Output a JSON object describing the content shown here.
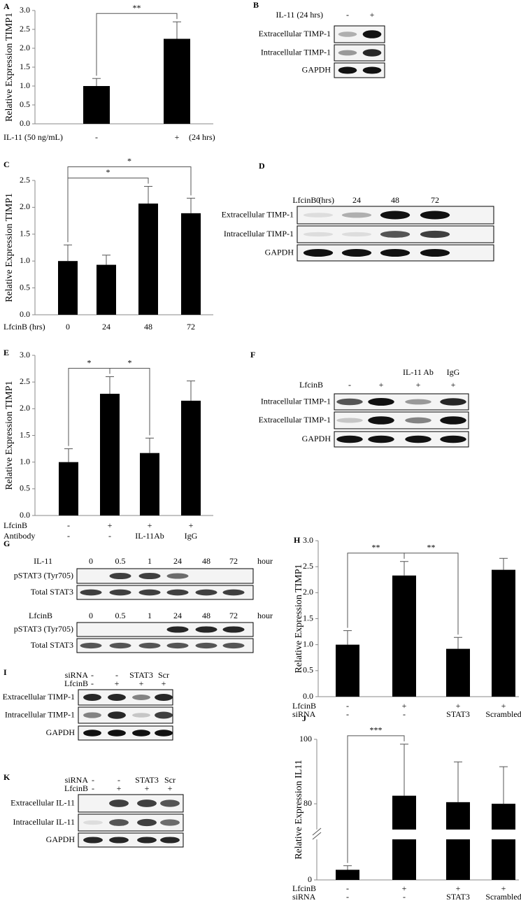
{
  "chart_data": [
    {
      "type": "bar",
      "panel": "A",
      "ylabel": "Relative Expression TIMP1",
      "category_rows": [
        {
          "name": "IL-11 (50 ng/mL)",
          "labels": [
            "-",
            "+"
          ]
        }
      ],
      "row_note": "(24 hrs)",
      "values": [
        1.0,
        2.25
      ],
      "errors": [
        0.2,
        0.45
      ],
      "color": "#000000",
      "ylim": [
        0,
        3
      ],
      "yticks": [
        {
          "value": 0,
          "label": "0.0"
        },
        0.5,
        {
          "value": 1,
          "label": "1.0"
        },
        1.5,
        {
          "value": 2,
          "label": "2.0"
        },
        2.5,
        {
          "value": 3,
          "label": "3.0"
        }
      ],
      "significance": [
        {
          "from": 0,
          "to": 1,
          "label": "**"
        }
      ]
    },
    {
      "type": "bar",
      "panel": "C",
      "ylabel": "Relative Expression TIMP1",
      "category_rows": [
        {
          "name": "LfcinB (hrs)",
          "labels": [
            "0",
            "24",
            "48",
            "72"
          ]
        }
      ],
      "values": [
        1.0,
        0.93,
        2.07,
        1.89
      ],
      "errors": [
        0.3,
        0.18,
        0.32,
        0.28
      ],
      "color": "#000000",
      "ylim": [
        0,
        2.5
      ],
      "yticks": [
        {
          "value": 0,
          "label": "0.0"
        },
        0.5,
        {
          "value": 1,
          "label": "1.0"
        },
        1.5,
        {
          "value": 2,
          "label": "2.0"
        },
        2.5
      ],
      "significance": [
        {
          "from": 0,
          "to": 2,
          "label": "*"
        },
        {
          "from": 0,
          "to": 3,
          "label": "*"
        }
      ]
    },
    {
      "type": "bar",
      "panel": "E",
      "ylabel": "Relative Expression TIMP1",
      "category_rows": [
        {
          "name": "LfcinB",
          "labels": [
            "-",
            "+",
            "+",
            "+"
          ]
        },
        {
          "name": "Antibody",
          "labels": [
            "-",
            "-",
            "IL-11Ab",
            "IgG"
          ]
        }
      ],
      "values": [
        1.0,
        2.28,
        1.17,
        2.15
      ],
      "errors": [
        0.25,
        0.32,
        0.28,
        0.37
      ],
      "color": "#000000",
      "ylim": [
        0,
        3
      ],
      "yticks": [
        {
          "value": 0,
          "label": "0.0"
        },
        0.5,
        {
          "value": 1,
          "label": "1.0"
        },
        1.5,
        {
          "value": 2,
          "label": "2.0"
        },
        2.5,
        {
          "value": 3,
          "label": "3.0"
        }
      ],
      "significance": [
        {
          "from": 0,
          "to": 1,
          "label": "*"
        },
        {
          "from": 1,
          "to": 2,
          "label": "*"
        }
      ]
    },
    {
      "type": "bar",
      "panel": "H",
      "ylabel": "Relative Expression TIMP1",
      "category_rows": [
        {
          "name": "LfcinB",
          "labels": [
            "-",
            "+",
            "+",
            "+"
          ]
        },
        {
          "name": "siRNA",
          "labels": [
            "-",
            "-",
            "STAT3",
            "Scrambled"
          ]
        }
      ],
      "values": [
        1.0,
        2.33,
        0.92,
        2.44
      ],
      "errors": [
        0.27,
        0.27,
        0.22,
        0.22
      ],
      "color": "#000000",
      "ylim": [
        0,
        3
      ],
      "yticks": [
        {
          "value": 0,
          "label": "0.0"
        },
        0.5,
        {
          "value": 1,
          "label": "1.0"
        },
        1.5,
        {
          "value": 2,
          "label": "2.0"
        },
        2.5,
        {
          "value": 3,
          "label": "3.0"
        }
      ],
      "significance": [
        {
          "from": 0,
          "to": 1,
          "label": "**"
        },
        {
          "from": 1,
          "to": 2,
          "label": "**"
        }
      ]
    },
    {
      "type": "bar",
      "panel": "J",
      "ylabel": "Relative Expression IL11",
      "category_rows": [
        {
          "name": "LfcinB",
          "labels": [
            "-",
            "+",
            "+",
            "+"
          ]
        },
        {
          "name": "siRNA",
          "labels": [
            "-",
            "-",
            "STAT3",
            "Scrambled"
          ]
        }
      ],
      "values": [
        5,
        82.5,
        80.5,
        80
      ],
      "errors": [
        2,
        16,
        12.5,
        11.5
      ],
      "color": "#000000",
      "ylim": [
        0,
        100
      ],
      "axis_break": [
        20,
        72
      ],
      "yticks": [
        0,
        80,
        100
      ],
      "significance": [
        {
          "from": 0,
          "to": 1,
          "label": "***"
        }
      ]
    }
  ],
  "blots": [
    {
      "panel": "B",
      "blocks": [
        {
          "headers": [
            {
              "name": "IL-11 (24 hrs)",
              "labels": [
                "-",
                "+"
              ]
            }
          ],
          "rows": [
            "Extracellular TIMP-1",
            "Intracellular TIMP-1",
            "GAPDH"
          ]
        }
      ]
    },
    {
      "panel": "D",
      "blocks": [
        {
          "headers": [
            {
              "name": "LfcinB (hrs)",
              "labels": [
                "0",
                "24",
                "48",
                "72"
              ]
            }
          ],
          "rows": [
            "Extracellular TIMP-1",
            "Intracellular TIMP-1",
            "GAPDH"
          ]
        }
      ]
    },
    {
      "panel": "F",
      "blocks": [
        {
          "headers": [
            {
              "labels": [
                null,
                null,
                "IL-11 Ab",
                "IgG"
              ]
            },
            {
              "name": "LfcinB",
              "labels": [
                "-",
                "+",
                "+",
                "+"
              ]
            }
          ],
          "rows": [
            "Intracellular TIMP-1",
            "Extracellular TIMP-1",
            "GAPDH"
          ]
        }
      ]
    },
    {
      "panel": "G",
      "blocks": [
        {
          "headers": [
            {
              "name": "IL-11",
              "labels": [
                "0",
                "0.5",
                "1",
                "24",
                "48",
                "72"
              ],
              "unit": "hour"
            }
          ],
          "rows": [
            "pSTAT3 (Tyr705)",
            "Total STAT3"
          ]
        },
        {
          "headers": [
            {
              "name": "LfcinB",
              "labels": [
                "0",
                "0.5",
                "1",
                "24",
                "48",
                "72"
              ],
              "unit": "hour"
            }
          ],
          "rows": [
            "pSTAT3 (Tyr705)",
            "Total STAT3"
          ]
        }
      ]
    },
    {
      "panel": "I",
      "blocks": [
        {
          "headers": [
            {
              "name": "siRNA",
              "labels": [
                "-",
                "-",
                "STAT3",
                "Scr"
              ]
            },
            {
              "name": "LfcinB",
              "labels": [
                "-",
                "+",
                "+",
                "+"
              ]
            }
          ],
          "rows": [
            "Extracellular TIMP-1",
            "Intracellular TIMP-1",
            "GAPDH"
          ]
        }
      ]
    },
    {
      "panel": "K",
      "blocks": [
        {
          "headers": [
            {
              "name": "siRNA",
              "labels": [
                "-",
                "-",
                "STAT3",
                "Scr"
              ]
            },
            {
              "name": "LfcinB",
              "labels": [
                "-",
                "+",
                "+",
                "+"
              ]
            }
          ],
          "rows": [
            "Extracellular IL-11",
            "Intracellular IL-11",
            "GAPDH"
          ]
        }
      ]
    }
  ]
}
